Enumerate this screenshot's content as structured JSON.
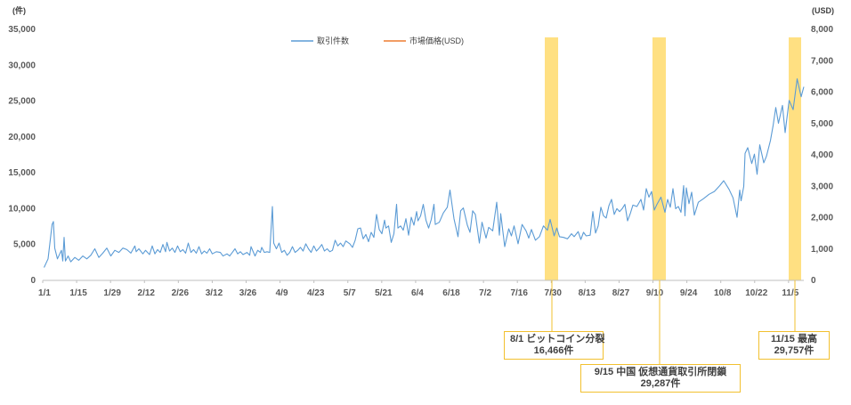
{
  "chart_data": {
    "type": "line",
    "left_unit": "(件)",
    "right_unit": "(USD)",
    "y_left": {
      "min": 0,
      "max": 35000,
      "ticks": [
        "0",
        "5,000",
        "10,000",
        "15,000",
        "20,000",
        "25,000",
        "30,000",
        "35,000"
      ]
    },
    "y_right": {
      "min": 0,
      "max": 8000,
      "ticks": [
        "0",
        "1,000",
        "2,000",
        "3,000",
        "4,000",
        "5,000",
        "6,000",
        "7,000",
        "8,000"
      ]
    },
    "x_tick_labels": [
      "1/1",
      "1/15",
      "1/29",
      "2/12",
      "2/26",
      "3/12",
      "3/26",
      "4/9",
      "4/23",
      "5/7",
      "5/21",
      "6/4",
      "6/18",
      "7/2",
      "7/16",
      "7/30",
      "8/13",
      "8/27",
      "9/10",
      "9/24",
      "10/8",
      "10/22",
      "11/5"
    ],
    "series": [
      {
        "name": "取引件数",
        "axis": "left",
        "color": "#5b9bd5",
        "points": [
          [
            1,
            1800
          ],
          [
            4,
            3000
          ],
          [
            7,
            7800
          ],
          [
            8,
            8200
          ],
          [
            9,
            4500
          ],
          [
            11,
            3000
          ],
          [
            14,
            4200
          ],
          [
            15,
            2700
          ],
          [
            16,
            6000
          ],
          [
            17,
            2700
          ],
          [
            19,
            3400
          ],
          [
            21,
            2600
          ],
          [
            24,
            3200
          ],
          [
            27,
            2800
          ],
          [
            30,
            3400
          ],
          [
            33,
            3000
          ],
          [
            36,
            3500
          ],
          [
            39,
            4400
          ],
          [
            42,
            3200
          ],
          [
            45,
            3800
          ],
          [
            48,
            4500
          ],
          [
            51,
            3400
          ],
          [
            54,
            4200
          ],
          [
            57,
            3900
          ],
          [
            60,
            4500
          ],
          [
            63,
            4300
          ],
          [
            66,
            3800
          ],
          [
            69,
            4800
          ],
          [
            70,
            4000
          ],
          [
            72,
            4400
          ],
          [
            75,
            3700
          ],
          [
            77,
            4200
          ],
          [
            80,
            3600
          ],
          [
            82,
            4800
          ],
          [
            84,
            3700
          ],
          [
            86,
            4300
          ],
          [
            88,
            3900
          ],
          [
            90,
            5000
          ],
          [
            92,
            4000
          ],
          [
            93,
            5300
          ],
          [
            95,
            4100
          ],
          [
            97,
            4500
          ],
          [
            99,
            3900
          ],
          [
            101,
            4800
          ],
          [
            103,
            4000
          ],
          [
            105,
            4300
          ],
          [
            107,
            3800
          ],
          [
            109,
            5200
          ],
          [
            111,
            3900
          ],
          [
            113,
            4300
          ],
          [
            115,
            3800
          ],
          [
            117,
            4700
          ],
          [
            119,
            3700
          ],
          [
            121,
            4100
          ],
          [
            123,
            3800
          ],
          [
            125,
            4400
          ],
          [
            127,
            3700
          ],
          [
            130,
            4000
          ],
          [
            133,
            3900
          ],
          [
            135,
            3400
          ],
          [
            136,
            3500
          ],
          [
            138,
            3700
          ],
          [
            140,
            3400
          ],
          [
            142,
            3900
          ],
          [
            144,
            4400
          ],
          [
            146,
            3700
          ],
          [
            148,
            4000
          ],
          [
            150,
            3600
          ],
          [
            153,
            3900
          ],
          [
            155,
            3500
          ],
          [
            156,
            4700
          ],
          [
            159,
            3400
          ],
          [
            161,
            4200
          ],
          [
            163,
            3900
          ],
          [
            164,
            4600
          ],
          [
            166,
            3900
          ],
          [
            168,
            4000
          ],
          [
            170,
            3900
          ],
          [
            172,
            10300
          ],
          [
            173,
            5200
          ],
          [
            175,
            4400
          ],
          [
            177,
            5200
          ],
          [
            179,
            3900
          ],
          [
            181,
            4200
          ],
          [
            183,
            3500
          ],
          [
            185,
            3900
          ],
          [
            187,
            4700
          ],
          [
            189,
            3900
          ],
          [
            191,
            4200
          ],
          [
            193,
            4600
          ],
          [
            195,
            4100
          ],
          [
            197,
            5100
          ],
          [
            199,
            4400
          ],
          [
            201,
            3900
          ],
          [
            203,
            4800
          ],
          [
            205,
            4100
          ],
          [
            207,
            4500
          ],
          [
            209,
            5000
          ],
          [
            211,
            4100
          ],
          [
            213,
            4400
          ],
          [
            215,
            4000
          ],
          [
            217,
            4200
          ],
          [
            219,
            5600
          ],
          [
            221,
            4800
          ],
          [
            223,
            5200
          ],
          [
            225,
            4700
          ],
          [
            227,
            5500
          ],
          [
            230,
            5100
          ],
          [
            232,
            4600
          ],
          [
            234,
            5600
          ],
          [
            236,
            7200
          ],
          [
            238,
            7300
          ],
          [
            240,
            5800
          ],
          [
            242,
            6400
          ],
          [
            244,
            5400
          ],
          [
            246,
            6700
          ],
          [
            248,
            6000
          ],
          [
            250,
            9200
          ],
          [
            252,
            7100
          ],
          [
            254,
            6500
          ],
          [
            256,
            8400
          ],
          [
            257,
            7300
          ],
          [
            259,
            7600
          ],
          [
            261,
            5300
          ],
          [
            263,
            6500
          ],
          [
            265,
            10600
          ],
          [
            266,
            7300
          ],
          [
            268,
            7600
          ],
          [
            270,
            7000
          ],
          [
            272,
            8600
          ],
          [
            274,
            6300
          ],
          [
            276,
            8800
          ],
          [
            278,
            7700
          ],
          [
            280,
            9600
          ],
          [
            281,
            8300
          ],
          [
            283,
            9000
          ],
          [
            285,
            10600
          ],
          [
            287,
            8400
          ],
          [
            289,
            7300
          ],
          [
            291,
            8500
          ],
          [
            293,
            10600
          ],
          [
            294,
            7800
          ],
          [
            297,
            8100
          ],
          [
            300,
            9400
          ],
          [
            303,
            10200
          ],
          [
            305,
            12600
          ],
          [
            308,
            8600
          ],
          [
            311,
            6100
          ],
          [
            313,
            9700
          ],
          [
            315,
            10100
          ],
          [
            318,
            7700
          ],
          [
            320,
            6700
          ],
          [
            322,
            9700
          ],
          [
            324,
            9200
          ],
          [
            327,
            5200
          ],
          [
            329,
            8100
          ],
          [
            332,
            5900
          ],
          [
            334,
            7400
          ],
          [
            337,
            6900
          ],
          [
            340,
            10900
          ],
          [
            342,
            6300
          ],
          [
            343,
            9300
          ],
          [
            346,
            4700
          ],
          [
            349,
            7200
          ],
          [
            351,
            6200
          ],
          [
            353,
            7600
          ],
          [
            356,
            5100
          ],
          [
            359,
            7800
          ],
          [
            362,
            6900
          ],
          [
            364,
            5900
          ],
          [
            366,
            7100
          ],
          [
            369,
            5600
          ],
          [
            372,
            6100
          ],
          [
            375,
            7600
          ],
          [
            378,
            7000
          ],
          [
            380,
            8500
          ],
          [
            383,
            6200
          ],
          [
            385,
            7300
          ],
          [
            387,
            6100
          ],
          [
            390,
            6000
          ],
          [
            393,
            5800
          ],
          [
            396,
            6500
          ],
          [
            398,
            6100
          ],
          [
            401,
            6800
          ],
          [
            403,
            5700
          ],
          [
            405,
            6700
          ],
          [
            407,
            6200
          ],
          [
            410,
            6300
          ],
          [
            412,
            9600
          ],
          [
            414,
            6600
          ],
          [
            416,
            7600
          ],
          [
            418,
            10200
          ],
          [
            420,
            9000
          ],
          [
            422,
            8700
          ],
          [
            424,
            10400
          ],
          [
            426,
            11300
          ],
          [
            428,
            9200
          ],
          [
            430,
            10000
          ],
          [
            432,
            9600
          ],
          [
            434,
            10000
          ],
          [
            436,
            10600
          ],
          [
            438,
            8300
          ],
          [
            440,
            9300
          ],
          [
            442,
            10500
          ],
          [
            445,
            10300
          ],
          [
            448,
            11300
          ],
          [
            450,
            9800
          ],
          [
            452,
            12800
          ],
          [
            454,
            11600
          ],
          [
            456,
            12400
          ],
          [
            458,
            9800
          ],
          [
            460,
            10600
          ],
          [
            463,
            11600
          ],
          [
            466,
            9500
          ],
          [
            468,
            11300
          ],
          [
            470,
            10200
          ],
          [
            472,
            12800
          ],
          [
            474,
            10000
          ],
          [
            476,
            10300
          ],
          [
            478,
            9500
          ],
          [
            480,
            13200
          ],
          [
            481,
            9000
          ],
          [
            482,
            12900
          ],
          [
            484,
            10700
          ],
          [
            486,
            12300
          ],
          [
            488,
            9100
          ],
          [
            491,
            10900
          ],
          [
            495,
            11400
          ],
          [
            499,
            12000
          ],
          [
            503,
            12400
          ],
          [
            507,
            13200
          ],
          [
            510,
            13900
          ],
          [
            514,
            12700
          ],
          [
            517,
            11500
          ],
          [
            520,
            8800
          ],
          [
            522,
            12600
          ],
          [
            523,
            11100
          ],
          [
            525,
            13100
          ],
          [
            526,
            17700
          ],
          [
            528,
            18500
          ],
          [
            531,
            16300
          ],
          [
            533,
            17600
          ],
          [
            535,
            14800
          ],
          [
            537,
            18900
          ],
          [
            540,
            16400
          ],
          [
            542,
            17300
          ],
          [
            545,
            19500
          ],
          [
            547,
            21600
          ],
          [
            549,
            24100
          ],
          [
            551,
            21900
          ],
          [
            554,
            24400
          ],
          [
            556,
            20600
          ],
          [
            559,
            25100
          ],
          [
            562,
            23800
          ],
          [
            565,
            28100
          ],
          [
            568,
            25600
          ],
          [
            570,
            27000
          ]
        ]
      },
      {
        "name": "市場価格(USD)",
        "axis": "right",
        "color": "#ed7d31",
        "points": []
      }
    ]
  },
  "callouts": [
    {
      "id": "bitcoin-split",
      "line1": "8/1 ビットコイン分裂",
      "line2": "16,466件"
    },
    {
      "id": "china-exchange",
      "line1": "9/15 中国 仮想通貨取引所閉鎖",
      "line2": "29,287件"
    },
    {
      "id": "max",
      "line1": "11/15 最高",
      "line2": "29,757件"
    }
  ],
  "colors": {
    "highlight": "#ffe082",
    "callout_border": "#f2c02f",
    "grid": "#d9d9d9",
    "axis": "#bfbfbf"
  }
}
